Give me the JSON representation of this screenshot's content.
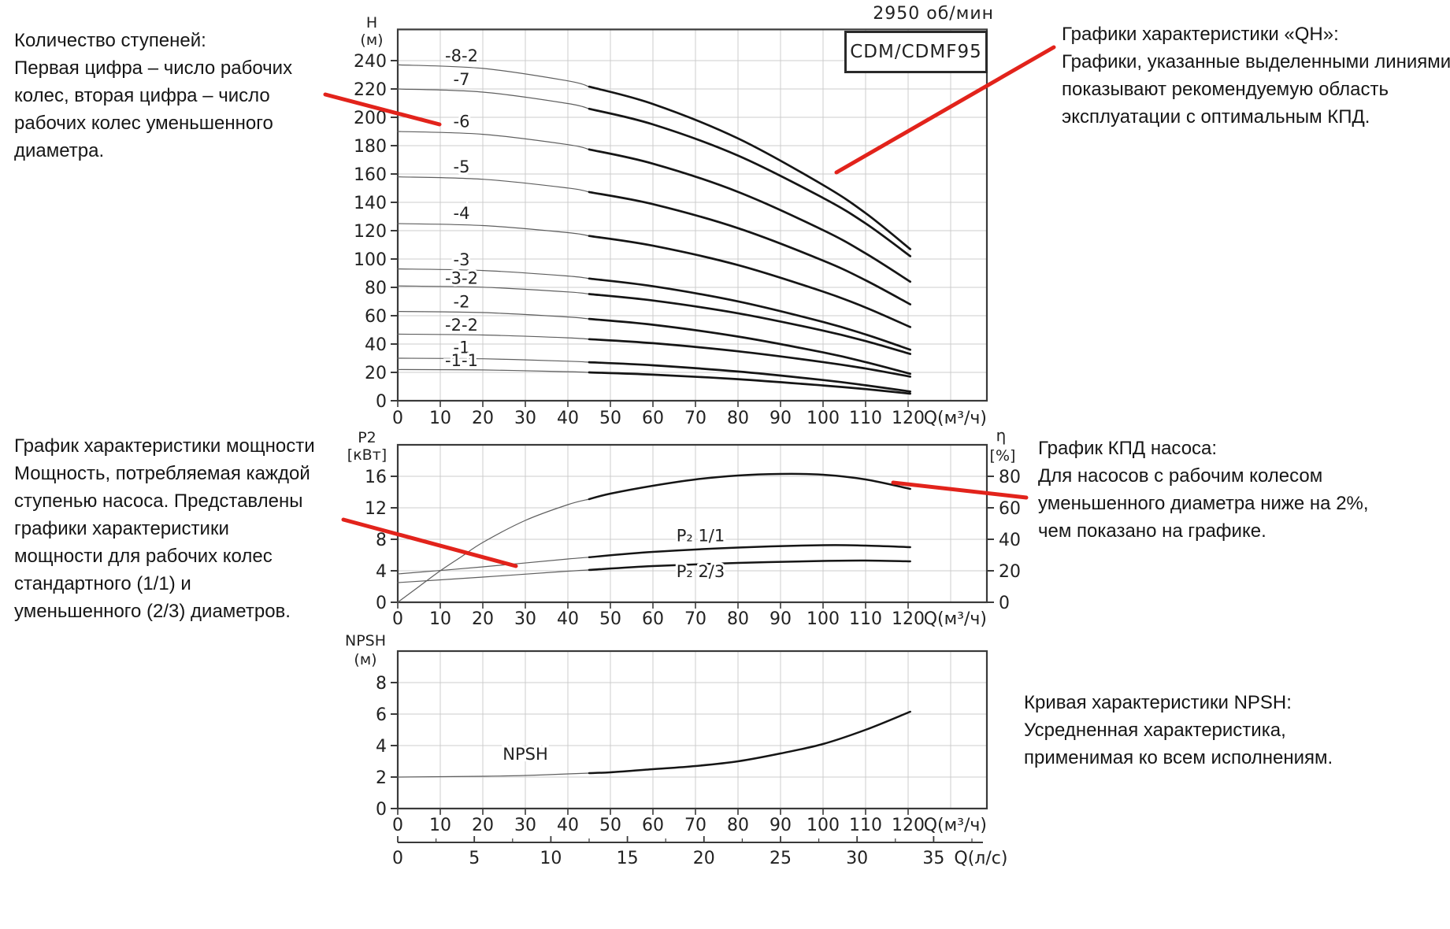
{
  "header": {
    "rpm": "2950 об/мин",
    "model": "CDM/CDMF95"
  },
  "annotations": {
    "stages": "Количество ступеней:\nПервая цифра – число рабочих\nколес, вторая цифра – число\nрабочих колес уменьшенного\nдиаметра.",
    "qh": "Графики характеристики «QH»:\nГрафики, указанные выделенными линиями,\nпоказывают рекомендуемую область\nэксплуатации с оптимальным КПД.",
    "power": "График характеристики мощности\nМощность, потребляемая каждой\nступенью насоса. Представлены\nграфики характеристики\nмощности для рабочих колес\nстандартного (1/1) и\nуменьшенного (2/3) диаметров.",
    "efficiency": "График КПД насоса:\nДля насосов с рабочим колесом\nуменьшенного диаметра ниже на 2%,\nчем показано на графике.",
    "npsh": "Кривая характеристики NPSH:\nУсредненная характеристика,\nприменимая ко всем исполнениям."
  },
  "colors": {
    "accent_red": "#e2231b",
    "curve_bold": "#151515",
    "curve_thin": "#5f5f5f",
    "grid": "#cccccc",
    "axis": "#3a3a3a",
    "text": "#222222"
  },
  "pointer_lines": [
    {
      "name": "stages-pointer",
      "from": [
        413,
        120
      ],
      "to": [
        558,
        158
      ]
    },
    {
      "name": "qh-pointer",
      "from": [
        1338,
        60
      ],
      "to": [
        1062,
        219
      ]
    },
    {
      "name": "power-pointer",
      "from": [
        436,
        660
      ],
      "to": [
        655,
        719
      ]
    },
    {
      "name": "efficiency-pointer",
      "from": [
        1134,
        613
      ],
      "to": [
        1303,
        632
      ]
    }
  ],
  "chart_data": [
    {
      "id": "qh",
      "type": "line",
      "title": "CDM/CDMF95",
      "rpm": "2950 об/мин",
      "xlabel": "Q(м³/ч)",
      "ylabel": [
        "H",
        "(м)"
      ],
      "xlim": [
        0,
        138.5
      ],
      "ylim": [
        0,
        262
      ],
      "xticks": [
        0,
        10,
        20,
        30,
        40,
        50,
        60,
        70,
        80,
        90,
        100,
        110,
        120
      ],
      "yticks": [
        0,
        20,
        40,
        60,
        80,
        100,
        120,
        140,
        160,
        180,
        200,
        220,
        240
      ],
      "grid": true,
      "bold_from": 45,
      "series": [
        {
          "name": "-8-2",
          "points": [
            [
              0,
              237
            ],
            [
              20,
              234.5
            ],
            [
              40,
              225.7
            ],
            [
              60,
              209.4
            ],
            [
              80,
              185.1
            ],
            [
              100,
              152.2
            ],
            [
              110,
              132.4
            ],
            [
              120.5,
              107
            ]
          ],
          "label": {
            "q": 15,
            "dy": 8
          }
        },
        {
          "name": "-7",
          "points": [
            [
              0,
              220
            ],
            [
              20,
              217.8
            ],
            [
              40,
              209.7
            ],
            [
              60,
              195
            ],
            [
              80,
              173
            ],
            [
              100,
              143.1
            ],
            [
              110,
              125.1
            ],
            [
              120.5,
              102
            ]
          ],
          "label": {
            "q": 15,
            "dy": 8
          }
        },
        {
          "name": "-6",
          "points": [
            [
              0,
              190
            ],
            [
              20,
              188
            ],
            [
              40,
              180.7
            ],
            [
              60,
              167.3
            ],
            [
              80,
              147.4
            ],
            [
              100,
              120.4
            ],
            [
              110,
              104
            ],
            [
              120.5,
              84
            ]
          ],
          "label": {
            "q": 15,
            "dy": 8
          }
        },
        {
          "name": "-5",
          "points": [
            [
              0,
              158
            ],
            [
              20,
              156.3
            ],
            [
              40,
              150.1
            ],
            [
              60,
              138.7
            ],
            [
              80,
              121.8
            ],
            [
              100,
              98.9
            ],
            [
              110,
              85
            ],
            [
              120.5,
              68
            ]
          ],
          "label": {
            "q": 15,
            "dy": 8
          }
        },
        {
          "name": "-4",
          "points": [
            [
              0,
              125
            ],
            [
              20,
              123.6
            ],
            [
              40,
              118.6
            ],
            [
              60,
              109.4
            ],
            [
              80,
              95.7
            ],
            [
              100,
              77
            ],
            [
              110,
              65.8
            ],
            [
              120.5,
              52
            ]
          ],
          "label": {
            "q": 15,
            "dy": 8
          }
        },
        {
          "name": "-3",
          "points": [
            [
              0,
              93
            ],
            [
              20,
              91.9
            ],
            [
              40,
              88
            ],
            [
              60,
              80.8
            ],
            [
              80,
              70.1
            ],
            [
              100,
              55.6
            ],
            [
              110,
              46.8
            ],
            [
              120.5,
              36
            ]
          ],
          "label": {
            "q": 15,
            "dy": 6
          }
        },
        {
          "name": "-3-2",
          "points": [
            [
              0,
              81
            ],
            [
              20,
              80.1
            ],
            [
              40,
              76.8
            ],
            [
              60,
              70.7
            ],
            [
              80,
              61.7
            ],
            [
              100,
              49.5
            ],
            [
              110,
              42.1
            ],
            [
              120.5,
              33
            ]
          ],
          "label": {
            "q": 15,
            "dy": 4
          }
        },
        {
          "name": "-2",
          "points": [
            [
              0,
              63
            ],
            [
              20,
              62.2
            ],
            [
              40,
              59.1
            ],
            [
              60,
              53.6
            ],
            [
              80,
              45.3
            ],
            [
              100,
              34.1
            ],
            [
              110,
              27.3
            ],
            [
              120.5,
              19
            ]
          ],
          "label": {
            "q": 15,
            "dy": 6
          }
        },
        {
          "name": "-2-2",
          "points": [
            [
              0,
              47
            ],
            [
              20,
              46.4
            ],
            [
              40,
              44.4
            ],
            [
              60,
              40.6
            ],
            [
              80,
              34.9
            ],
            [
              100,
              27.3
            ],
            [
              110,
              22.7
            ],
            [
              120.5,
              17
            ]
          ],
          "label": {
            "q": 15,
            "dy": 5
          }
        },
        {
          "name": "-1",
          "points": [
            [
              0,
              30
            ],
            [
              20,
              29.6
            ],
            [
              40,
              27.9
            ],
            [
              60,
              25
            ],
            [
              80,
              20.6
            ],
            [
              100,
              14.6
            ],
            [
              110,
              10.9
            ],
            [
              120.5,
              6.5
            ]
          ],
          "label": {
            "q": 15,
            "dy": 7
          }
        },
        {
          "name": "-1-1",
          "points": [
            [
              0,
              22
            ],
            [
              20,
              21.7
            ],
            [
              40,
              20.5
            ],
            [
              60,
              18.4
            ],
            [
              80,
              15.2
            ],
            [
              100,
              10.8
            ],
            [
              110,
              8.2
            ],
            [
              120.5,
              5
            ]
          ],
          "label": {
            "q": 15,
            "dy": 5
          }
        }
      ]
    },
    {
      "id": "power-efficiency",
      "type": "line",
      "xlabel": "Q(м³/ч)",
      "ylabel": [
        "P2",
        "[кВт]"
      ],
      "ylabel_right": [
        "η",
        "[%]"
      ],
      "xlim": [
        0,
        138.5
      ],
      "ylim": [
        0,
        20
      ],
      "ylim_right": [
        0,
        100
      ],
      "xticks": [
        0,
        10,
        20,
        30,
        40,
        50,
        60,
        70,
        80,
        90,
        100,
        110,
        120
      ],
      "yticks": [
        0,
        4,
        8,
        12,
        16
      ],
      "yticks_right": [
        0,
        20,
        40,
        60,
        80
      ],
      "grid": true,
      "bold_from": 45,
      "series": [
        {
          "name": "η",
          "axis": "right",
          "points": [
            [
              0,
              0
            ],
            [
              5,
              10
            ],
            [
              10,
              20
            ],
            [
              15,
              29
            ],
            [
              20,
              38
            ],
            [
              30,
              52
            ],
            [
              40,
              62
            ],
            [
              50,
              69
            ],
            [
              60,
              74
            ],
            [
              70,
              78
            ],
            [
              80,
              80.5
            ],
            [
              90,
              81.5
            ],
            [
              100,
              81
            ],
            [
              110,
              78
            ],
            [
              120.5,
              72
            ]
          ]
        },
        {
          "name": "P₂ 1/1",
          "points": [
            [
              0,
              3.6
            ],
            [
              20,
              4.5
            ],
            [
              40,
              5.5
            ],
            [
              60,
              6.4
            ],
            [
              80,
              6.95
            ],
            [
              100,
              7.25
            ],
            [
              110,
              7.2
            ],
            [
              120.5,
              7.0
            ]
          ],
          "label": {
            "q": 65.5,
            "dy": 12,
            "anchor": "start"
          }
        },
        {
          "name": "P₂ 2/3",
          "points": [
            [
              0,
              2.5
            ],
            [
              20,
              3.2
            ],
            [
              40,
              3.95
            ],
            [
              60,
              4.6
            ],
            [
              80,
              5.0
            ],
            [
              100,
              5.25
            ],
            [
              110,
              5.3
            ],
            [
              120.5,
              5.2
            ]
          ],
          "label": {
            "q": 65.5,
            "dy": -15,
            "anchor": "start"
          }
        }
      ]
    },
    {
      "id": "npsh",
      "type": "line",
      "xlabel": "Q(м³/ч)",
      "ylabel": [
        "NPSH",
        "(м)"
      ],
      "xlim": [
        0,
        138.5
      ],
      "ylim": [
        0,
        10
      ],
      "xticks": [
        0,
        10,
        20,
        30,
        40,
        50,
        60,
        70,
        80,
        90,
        100,
        110,
        120
      ],
      "yticks": [
        0,
        2,
        4,
        6,
        8
      ],
      "grid": true,
      "bold_from": 45,
      "series": [
        {
          "name": "NPSH",
          "points": [
            [
              0,
              2
            ],
            [
              20,
              2.05
            ],
            [
              30,
              2.1
            ],
            [
              40,
              2.2
            ],
            [
              50,
              2.3
            ],
            [
              60,
              2.5
            ],
            [
              70,
              2.7
            ],
            [
              80,
              3.0
            ],
            [
              90,
              3.5
            ],
            [
              100,
              4.1
            ],
            [
              110,
              5.0
            ],
            [
              120.5,
              6.15
            ]
          ],
          "label": {
            "q": 30,
            "dy": 20
          }
        }
      ],
      "x2": {
        "label": "Q(л/с)",
        "ticks": [
          0,
          5,
          10,
          15,
          20,
          25,
          30,
          35
        ],
        "factor": 3.6
      }
    }
  ]
}
